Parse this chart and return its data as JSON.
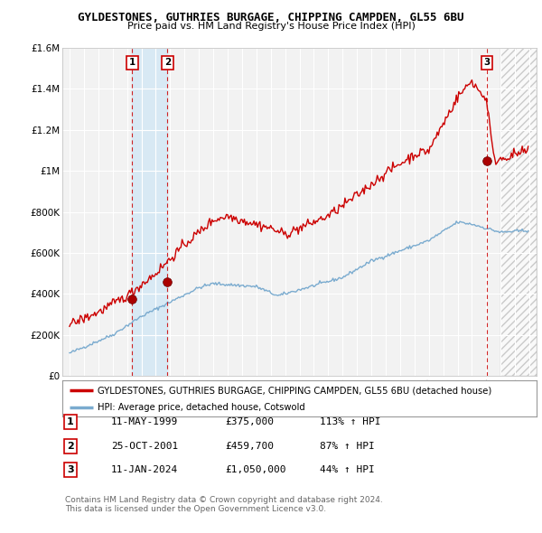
{
  "title1": "GYLDESTONES, GUTHRIES BURGAGE, CHIPPING CAMPDEN, GL55 6BU",
  "title2": "Price paid vs. HM Land Registry's House Price Index (HPI)",
  "bg_color": "#ffffff",
  "plot_bg_color": "#f2f2f2",
  "grid_color": "#ffffff",
  "purchases": [
    {
      "date_num": 1999.36,
      "price": 375000,
      "label": "1"
    },
    {
      "date_num": 2001.81,
      "price": 459700,
      "label": "2"
    },
    {
      "date_num": 2024.03,
      "price": 1050000,
      "label": "3"
    }
  ],
  "purchase_table": [
    {
      "num": "1",
      "date": "11-MAY-1999",
      "price": "£375,000",
      "hpi": "113% ↑ HPI"
    },
    {
      "num": "2",
      "date": "25-OCT-2001",
      "price": "£459,700",
      "hpi": "87% ↑ HPI"
    },
    {
      "num": "3",
      "date": "11-JAN-2024",
      "price": "£1,050,000",
      "hpi": "44% ↑ HPI"
    }
  ],
  "legend_line1": "GYLDESTONES, GUTHRIES BURGAGE, CHIPPING CAMPDEN, GL55 6BU (detached house)",
  "legend_line2": "HPI: Average price, detached house, Cotswold",
  "footnote1": "Contains HM Land Registry data © Crown copyright and database right 2024.",
  "footnote2": "This data is licensed under the Open Government Licence v3.0.",
  "red_line_color": "#cc0000",
  "blue_line_color": "#7aabcf",
  "shade_between_color": "#d6e8f5",
  "hatch_color": "#cccccc",
  "ylim": [
    0,
    1600000
  ],
  "yticks": [
    0,
    200000,
    400000,
    600000,
    800000,
    1000000,
    1200000,
    1400000,
    1600000
  ],
  "ytick_labels": [
    "£0",
    "£200K",
    "£400K",
    "£600K",
    "£800K",
    "£1M",
    "£1.2M",
    "£1.4M",
    "£1.6M"
  ],
  "xlim_start": 1994.5,
  "xlim_end": 2027.5,
  "hatch_start": 2025.0
}
